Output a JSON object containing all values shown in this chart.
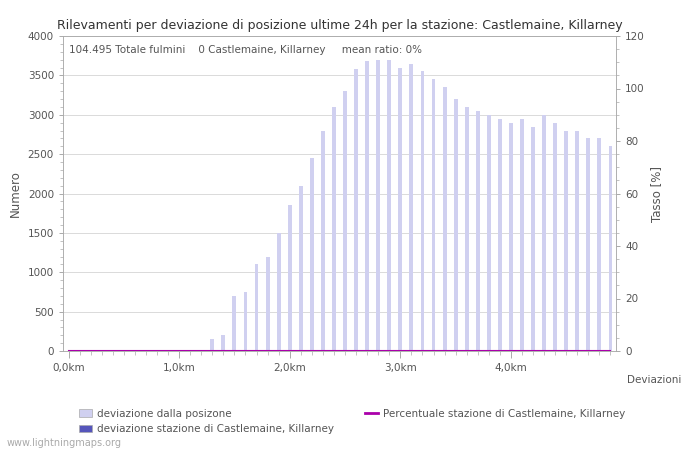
{
  "title": "Rilevamenti per deviazione di posizione ultime 24h per la stazione: Castlemaine, Killarney",
  "annotation": "104.495 Totale fulmini    0 Castlemaine, Killarney     mean ratio: 0%",
  "ylabel_left": "Numero",
  "ylabel_right": "Tasso [%]",
  "deviazioni_label": "Deviazioni",
  "ylim_left": [
    0,
    4000
  ],
  "ylim_right": [
    0,
    120
  ],
  "xtick_positions": [
    0,
    10,
    20,
    30,
    40
  ],
  "xtick_labels": [
    "0,0km",
    "1,0km",
    "2,0km",
    "3,0km",
    "4,0km"
  ],
  "ytick_left": [
    0,
    500,
    1000,
    1500,
    2000,
    2500,
    3000,
    3500,
    4000
  ],
  "ytick_right": [
    0,
    20,
    40,
    60,
    80,
    100,
    120
  ],
  "bar_color_all": "#d0d0f0",
  "bar_color_station": "#5555bb",
  "line_color": "#aa00aa",
  "watermark": "www.lightningmaps.org",
  "legend_label_all": "deviazione dalla posizone",
  "legend_label_station": "deviazione stazione di Castlemaine, Killarney",
  "legend_label_line": "Percentuale stazione di Castlemaine, Killarney",
  "bar_values_all": [
    3,
    2,
    1,
    2,
    2,
    1,
    2,
    2,
    1,
    2,
    2,
    3,
    2,
    150,
    200,
    700,
    750,
    1100,
    1200,
    1500,
    1850,
    2100,
    2450,
    2800,
    3100,
    3300,
    3580,
    3680,
    3700,
    3700,
    3600,
    3650,
    3550,
    3450,
    3350,
    3200,
    3100,
    3050,
    3000,
    2950,
    2900,
    2950,
    2850,
    3000,
    2900,
    2800,
    2800,
    2700,
    2700,
    2600
  ],
  "bar_values_station": [
    0,
    0,
    0,
    0,
    0,
    0,
    0,
    0,
    0,
    0,
    0,
    0,
    0,
    0,
    0,
    0,
    0,
    0,
    0,
    0,
    0,
    0,
    0,
    0,
    0,
    0,
    0,
    0,
    0,
    0,
    0,
    0,
    0,
    0,
    0,
    0,
    0,
    0,
    0,
    0,
    0,
    0,
    0,
    0,
    0,
    0,
    0,
    0,
    0,
    0
  ],
  "line_values": [
    0,
    0,
    0,
    0,
    0,
    0,
    0,
    0,
    0,
    0,
    0,
    0,
    0,
    0,
    0,
    0,
    0,
    0,
    0,
    0,
    0,
    0,
    0,
    0,
    0,
    0,
    0,
    0,
    0,
    0,
    0,
    0,
    0,
    0,
    0,
    0,
    0,
    0,
    0,
    0,
    0,
    0,
    0,
    0,
    0,
    0,
    0,
    0,
    0,
    0
  ]
}
